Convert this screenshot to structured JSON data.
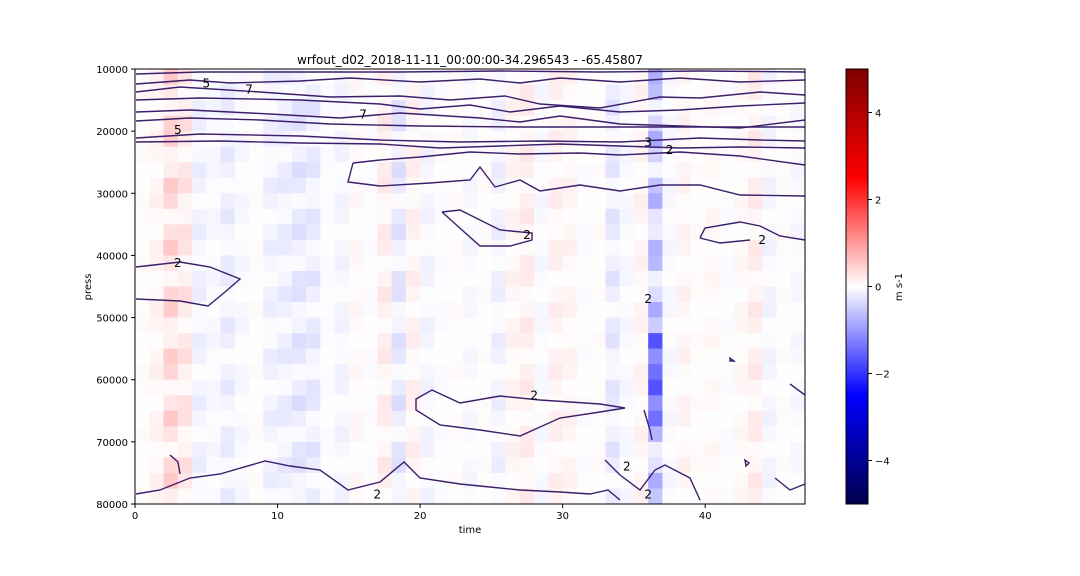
{
  "chart_data": {
    "type": "heatmap",
    "title": "wrfout_d02_2018-11-11_00:00:00-34.296543 - -65.45807",
    "xlabel": "time",
    "ylabel": "press",
    "xlim": [
      0,
      47
    ],
    "ylim": [
      10000,
      80000
    ],
    "y_inverted": true,
    "x_ticks": [
      "0",
      "10",
      "20",
      "30",
      "40"
    ],
    "x_tick_values": [
      0,
      10,
      20,
      30,
      40
    ],
    "y_ticks": [
      "10000",
      "20000",
      "30000",
      "40000",
      "50000",
      "60000",
      "70000",
      "80000"
    ],
    "y_tick_values": [
      10000,
      20000,
      30000,
      40000,
      50000,
      60000,
      70000,
      80000
    ],
    "colormap": "seismic",
    "colormap_stops": [
      "#00004c",
      "#0000ff",
      "#ffffff",
      "#ff0000",
      "#7f0000"
    ],
    "colorbar": {
      "label": "m s-1",
      "range": [
        -5,
        5
      ],
      "ticks": [
        "−4",
        "−2",
        "0",
        "2",
        "4"
      ],
      "tick_values": [
        -4,
        -2,
        0,
        2,
        4
      ]
    },
    "contour_color": "#3b1f6b",
    "contour_levels": [
      2,
      3,
      5,
      7
    ],
    "contour_labels": [
      {
        "text": "5",
        "x": 5,
        "y": 12300
      },
      {
        "text": "7",
        "x": 8,
        "y": 13300
      },
      {
        "text": "7",
        "x": 16,
        "y": 17300
      },
      {
        "text": "5",
        "x": 3,
        "y": 19800
      },
      {
        "text": "3",
        "x": 36,
        "y": 21800
      },
      {
        "text": "2",
        "x": 37.5,
        "y": 23000
      },
      {
        "text": "2",
        "x": 27.5,
        "y": 36700
      },
      {
        "text": "2",
        "x": 44,
        "y": 37500
      },
      {
        "text": "2",
        "x": 3,
        "y": 41200
      },
      {
        "text": "2",
        "x": 36,
        "y": 47000
      },
      {
        "text": "2",
        "x": 28,
        "y": 62500
      },
      {
        "text": "2",
        "x": 34.5,
        "y": 74000
      },
      {
        "text": "2",
        "x": 36,
        "y": 78500
      },
      {
        "text": "2",
        "x": 17,
        "y": 78500
      }
    ],
    "column_anomalies": [
      0.05,
      0.15,
      0.55,
      0.35,
      -0.2,
      -0.1,
      -0.25,
      -0.1,
      0.05,
      -0.2,
      -0.25,
      -0.35,
      -0.3,
      -0.05,
      -0.15,
      0.1,
      -0.05,
      0.25,
      -0.35,
      0.2,
      -0.15,
      -0.05,
      0.05,
      -0.1,
      0.05,
      -0.2,
      0.15,
      0.25,
      -0.1,
      0.2,
      0.15,
      -0.05,
      0.05,
      -0.3,
      -0.1,
      0.15,
      -0.85,
      -0.1,
      0.15,
      0.05,
      0.1,
      -0.05,
      0.1,
      0.25,
      -0.15,
      0.05,
      -0.1
    ]
  }
}
